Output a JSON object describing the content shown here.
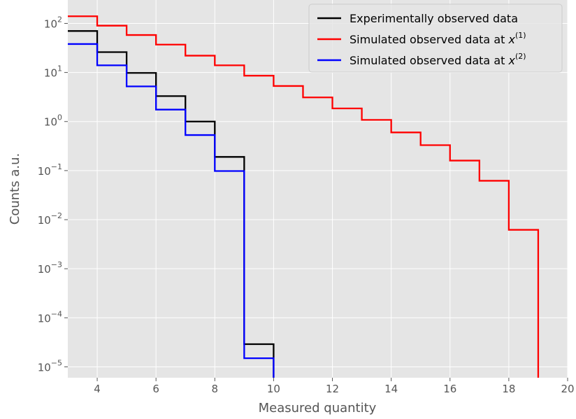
{
  "chart_data": {
    "type": "line",
    "drawstyle": "steps",
    "xlabel": "Measured quantity",
    "ylabel": "Counts a.u.",
    "xlim": [
      3,
      20
    ],
    "ylim": [
      6e-06,
      300
    ],
    "yscale": "log",
    "grid": true,
    "legend_position": "top-right",
    "x_ticks": [
      4,
      6,
      8,
      10,
      12,
      14,
      16,
      18,
      20
    ],
    "y_ticks": [
      {
        "exp": -5,
        "base": "10",
        "power": "−5"
      },
      {
        "exp": -4,
        "base": "10",
        "power": "−4"
      },
      {
        "exp": -3,
        "base": "10",
        "power": "−3"
      },
      {
        "exp": -2,
        "base": "10",
        "power": "−2"
      },
      {
        "exp": -1,
        "base": "10",
        "power": "−1"
      },
      {
        "exp": 0,
        "base": "10",
        "power": "0"
      },
      {
        "exp": 1,
        "base": "10",
        "power": "1"
      },
      {
        "exp": 2,
        "base": "10",
        "power": "2"
      }
    ],
    "bin_edges": [
      3,
      4,
      5,
      6,
      7,
      8,
      9,
      10,
      11,
      12,
      13,
      14,
      15,
      16,
      17,
      18,
      19
    ],
    "series": [
      {
        "name": "Experimentally observed data",
        "color": "#000000",
        "values": [
          70,
          26,
          9.8,
          3.3,
          1.0,
          0.19,
          2.9e-05,
          0,
          0,
          0,
          0,
          0,
          0,
          0,
          0,
          0
        ]
      },
      {
        "name": "Simulated observed data at x(1)",
        "color": "#ff0000",
        "legend_text": "Simulated observed data at ",
        "legend_var": "x",
        "legend_sup": "(1)",
        "values": [
          140,
          90,
          58,
          37,
          22,
          14,
          8.6,
          5.3,
          3.1,
          1.85,
          1.08,
          0.6,
          0.33,
          0.16,
          0.062,
          0.0062
        ]
      },
      {
        "name": "Simulated observed data at x(2)",
        "color": "#0000ff",
        "legend_text": "Simulated observed data at ",
        "legend_var": "x",
        "legend_sup": "(2)",
        "values": [
          38,
          14,
          5.2,
          1.75,
          0.53,
          0.098,
          1.5e-05,
          0,
          0,
          0,
          0,
          0,
          0,
          0,
          0,
          0
        ]
      }
    ]
  }
}
